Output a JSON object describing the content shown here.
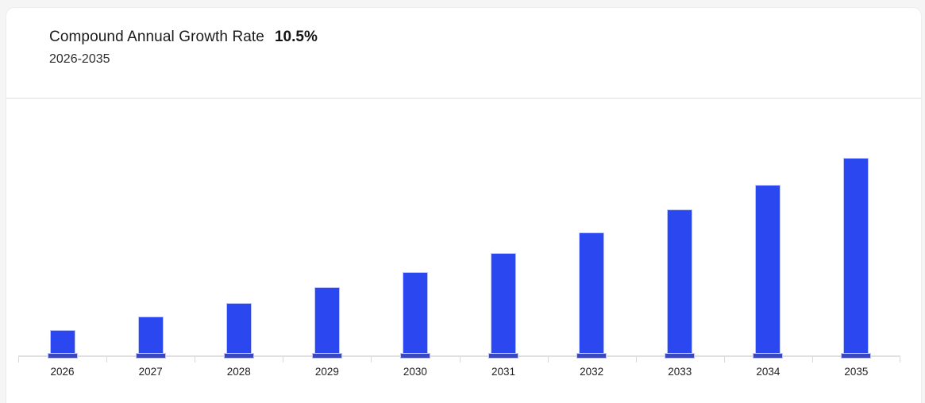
{
  "header": {
    "title": "Compound Annual Growth Rate",
    "cagr_value": "10.5%",
    "period": "2026-2035"
  },
  "chart_data": {
    "type": "bar",
    "title": "Compound Annual Growth Rate 10.5%",
    "subtitle": "2026-2035",
    "categories": [
      "2026",
      "2027",
      "2028",
      "2029",
      "2030",
      "2031",
      "2032",
      "2033",
      "2034",
      "2035"
    ],
    "values": [
      1.0,
      1.52,
      2.03,
      2.64,
      3.21,
      3.94,
      4.73,
      5.61,
      6.55,
      7.58
    ],
    "value_axis": "no y-axis labels shown; values are relative bar heights normalized to 2026 = 1.0",
    "xlabel": "",
    "ylabel": "",
    "legend": "none",
    "grid": false
  },
  "colors": {
    "bar": "#2b47f0",
    "bar_base": "#3b47bc",
    "bar_outline": "#bcc7f8",
    "axis": "#e0e0e0",
    "tick": "#d9d9d9",
    "divider": "#ededee",
    "card_bg": "#ffffff",
    "page_bg": "#f5f5f6"
  }
}
